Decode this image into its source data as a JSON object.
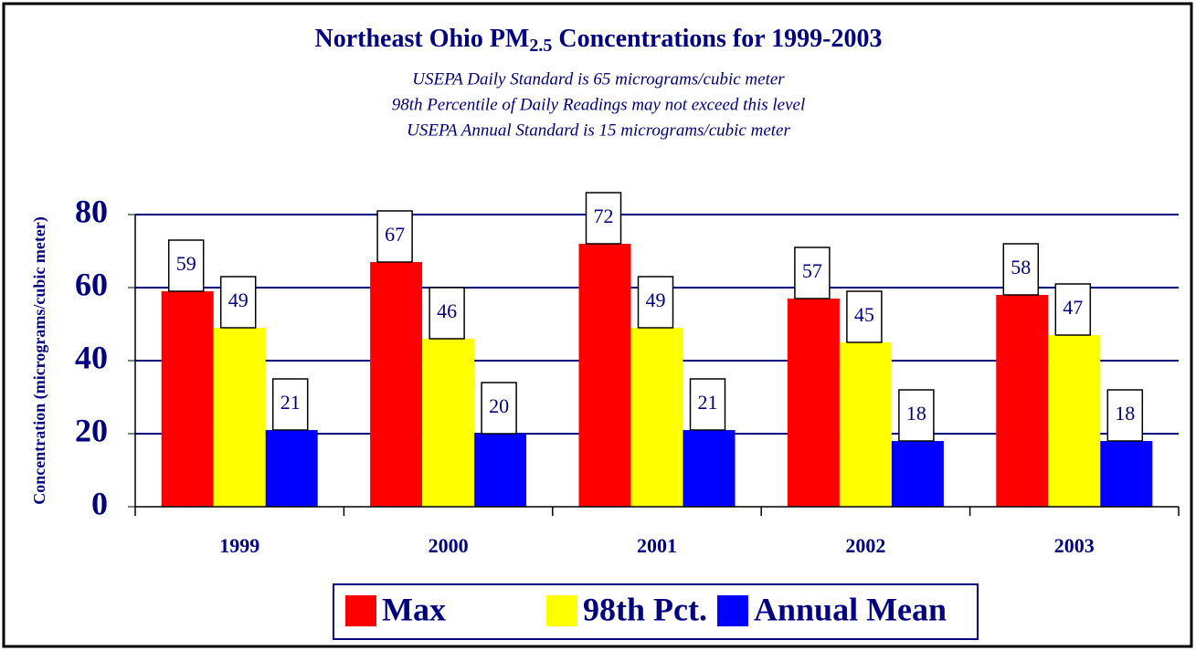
{
  "chart_data": {
    "type": "bar",
    "title": [
      "Northeast Ohio PM",
      "2.5",
      " Concentrations for 1999-2003"
    ],
    "subtitle": [
      "USEPA Daily Standard is 65 micrograms/cubic meter",
      "98th Percentile of Daily Readings may not exceed this level",
      "USEPA Annual Standard is 15 micrograms/cubic meter"
    ],
    "y_label": "Concentration (micrograms/cubic meter)",
    "categories": [
      "1999",
      "2000",
      "2001",
      "2002",
      "2003"
    ],
    "series": [
      {
        "name": "Max",
        "color": "#ff0000",
        "values": [
          59,
          67,
          72,
          57,
          58
        ]
      },
      {
        "name": "98th Pct.",
        "color": "#ffff00",
        "values": [
          49,
          46,
          49,
          45,
          47
        ]
      },
      {
        "name": "Annual Mean",
        "color": "#0000ff",
        "values": [
          21,
          20,
          21,
          18,
          18
        ]
      }
    ],
    "ylim": [
      0,
      80
    ],
    "yticks": [
      0,
      20,
      40,
      60,
      80
    ],
    "grid": true,
    "legend": "bottom"
  }
}
